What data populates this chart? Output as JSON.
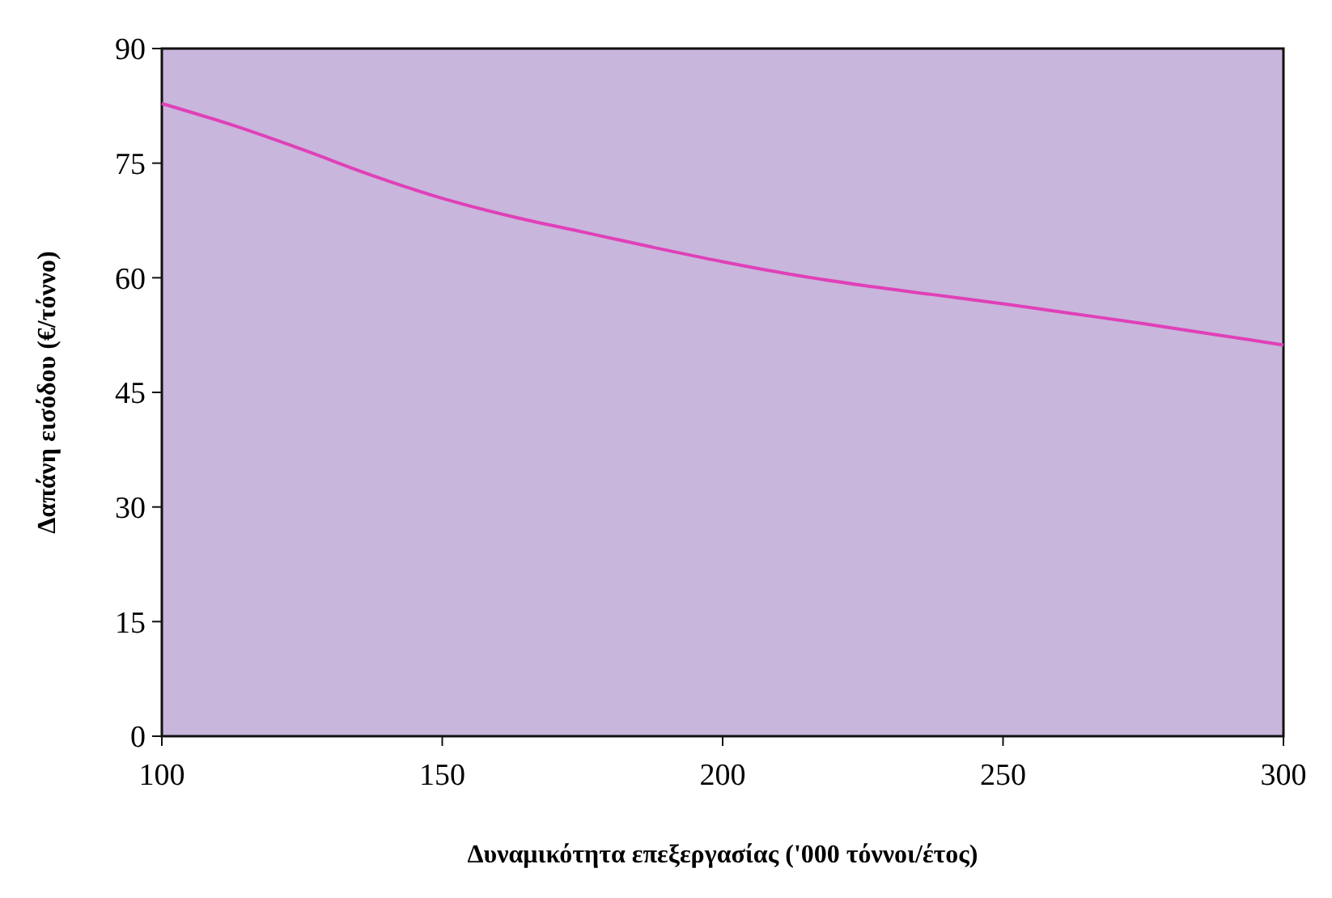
{
  "chart_data": {
    "type": "line",
    "xlabel": "Δυναμικότητα επεξεργασίας ('000 τόννοι/έτος)",
    "ylabel": "Δαπάνη εισόδου (€/τόννο)",
    "x": [
      100,
      112.5,
      125,
      137.5,
      150,
      162.5,
      175,
      187.5,
      200,
      212.5,
      225,
      237.5,
      250,
      262.5,
      275,
      287.5,
      300
    ],
    "series": [
      {
        "color": "#e040b8",
        "values": [
          82.8,
          80,
          76.8,
          73.4,
          70.4,
          68,
          66,
          64,
          62.1,
          60.4,
          59,
          57.8,
          56.6,
          55.3,
          54,
          52.6,
          51.2
        ]
      }
    ],
    "xlim": [
      100,
      300
    ],
    "xticks": [
      100,
      150,
      200,
      250,
      300
    ],
    "ylim": [
      0,
      90
    ],
    "yticks": [
      0,
      15,
      30,
      45,
      60,
      75,
      90
    ],
    "grid": false,
    "marker": "none",
    "line_style": "solid"
  }
}
